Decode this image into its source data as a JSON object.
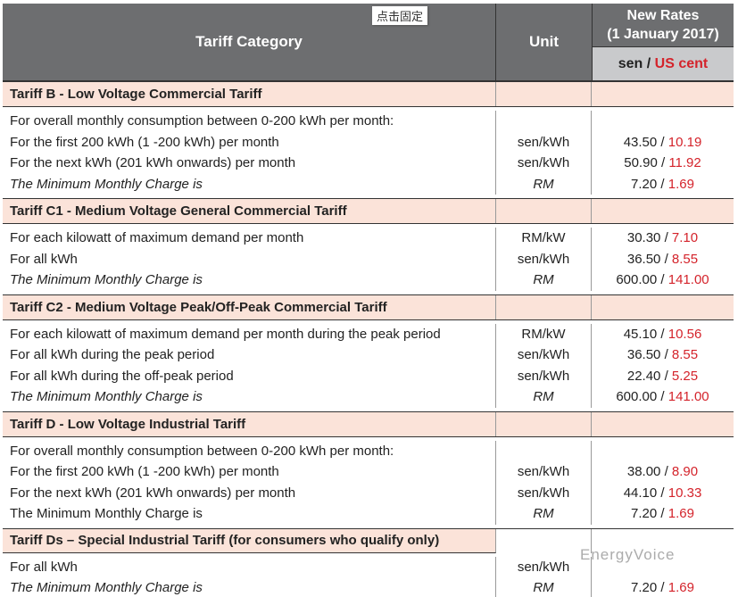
{
  "header": {
    "category": "Tariff Category",
    "unit": "Unit",
    "rates_title": "New Rates",
    "rates_date": "(1 January 2017)",
    "currency_sen": "sen",
    "currency_sep": " / ",
    "currency_us": "US cent",
    "pin_label": "点击固定"
  },
  "colors": {
    "header_bg": "#6d6e70",
    "section_bg": "#fbe3d9",
    "usd_red": "#d4232b"
  },
  "sections": [
    {
      "title": "Tariff B - Low Voltage Commercial Tariff",
      "rows": [
        {
          "desc": "For overall monthly consumption between 0-200 kWh per month:",
          "unit": "",
          "sen": "",
          "us": ""
        },
        {
          "desc": "For the first 200 kWh (1 -200 kWh) per month",
          "unit": "sen/kWh",
          "sen": "43.50",
          "us": "10.19"
        },
        {
          "desc": "For the next kWh (201 kWh onwards) per month",
          "unit": "sen/kWh",
          "sen": "50.90",
          "us": "11.92"
        },
        {
          "desc": "The Minimum Monthly Charge is",
          "unit": "RM",
          "sen": "7.20",
          "us": "1.69",
          "italic": true
        }
      ]
    },
    {
      "title": "Tariff C1 - Medium Voltage General Commercial Tariff",
      "rows": [
        {
          "desc": "For each kilowatt of maximum demand per month",
          "unit": "RM/kW",
          "sen": "30.30",
          "us": "7.10"
        },
        {
          "desc": "For all kWh",
          "unit": "sen/kWh",
          "sen": "36.50",
          "us": "8.55"
        },
        {
          "desc": "The Minimum Monthly Charge is",
          "unit": "RM",
          "sen": "600.00",
          "us": "141.00",
          "italic": true
        }
      ]
    },
    {
      "title": "Tariff C2 - Medium Voltage Peak/Off-Peak Commercial Tariff",
      "rows": [
        {
          "desc": "For each kilowatt of maximum demand per month during the peak period",
          "unit": "RM/kW",
          "sen": "45.10",
          "us": "10.56"
        },
        {
          "desc": "For all kWh during the peak period",
          "unit": "sen/kWh",
          "sen": "36.50",
          "us": "8.55"
        },
        {
          "desc": "For all kWh during the off-peak period",
          "unit": "sen/kWh",
          "sen": "22.40",
          "us": "5.25"
        },
        {
          "desc": "The Minimum Monthly Charge is",
          "unit": "RM",
          "sen": "600.00",
          "us": "141.00",
          "italic": true
        }
      ]
    },
    {
      "title": "Tariff D - Low Voltage Industrial Tariff",
      "rows": [
        {
          "desc": "For overall monthly consumption between 0-200 kWh per month:",
          "unit": "",
          "sen": "",
          "us": ""
        },
        {
          "desc": "For the first 200 kWh (1 -200 kWh) per month",
          "unit": "sen/kWh",
          "sen": "38.00",
          "us": "8.90"
        },
        {
          "desc": "For the next kWh (201 kWh onwards) per month",
          "unit": "sen/kWh",
          "sen": "44.10",
          "us": "10.33"
        },
        {
          "desc": "The Minimum Monthly Charge is",
          "unit": "RM",
          "sen": "7.20",
          "us": "1.69"
        }
      ]
    },
    {
      "title": "Tariff Ds – Special Industrial Tariff (for consumers who qualify only)",
      "partial": true,
      "rows": [
        {
          "desc": "For all kWh",
          "unit": "sen/kWh",
          "sen": "",
          "us": ""
        },
        {
          "desc": "The Minimum Monthly Charge is",
          "unit": "RM",
          "sen": "7.20",
          "us": "1.69",
          "italic": true
        }
      ]
    }
  ],
  "watermark": "EnergyVoice"
}
